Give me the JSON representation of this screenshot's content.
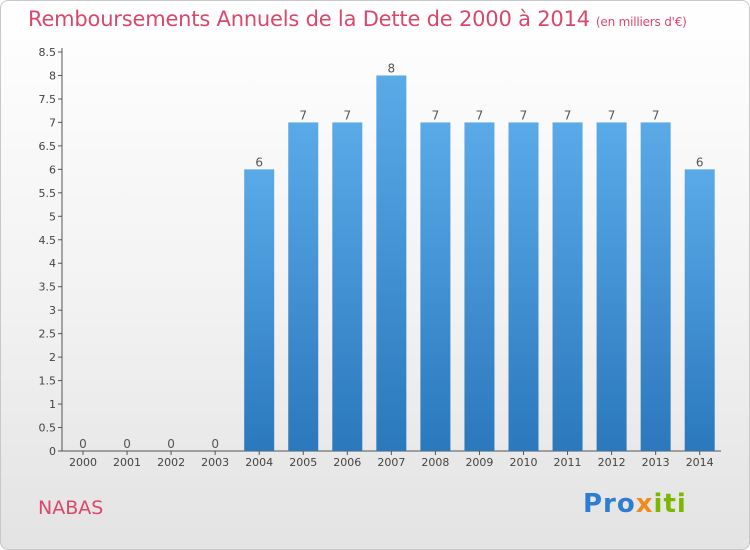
{
  "header": {
    "title": "Remboursements Annuels de la Dette de 2000 à 2014",
    "unit": "(en milliers d'€)"
  },
  "footer": {
    "commune": "NABAS",
    "logo_text": "Proxiti"
  },
  "colors": {
    "bar_top": "#5aaae8",
    "bar_bottom": "#2b78bd",
    "title": "#d9486b"
  },
  "chart_data": {
    "type": "bar",
    "categories": [
      "2000",
      "2001",
      "2002",
      "2003",
      "2004",
      "2005",
      "2006",
      "2007",
      "2008",
      "2009",
      "2010",
      "2011",
      "2012",
      "2013",
      "2014"
    ],
    "values": [
      0,
      0,
      0,
      0,
      6,
      7,
      7,
      8,
      7,
      7,
      7,
      7,
      7,
      7,
      6
    ],
    "data_labels": [
      "0",
      "0",
      "0",
      "0",
      "6",
      "7",
      "7",
      "8",
      "7",
      "7",
      "7",
      "7",
      "7",
      "7",
      "6"
    ],
    "y_ticks": [
      "0",
      "0.5",
      "1",
      "1.5",
      "2",
      "2.5",
      "3",
      "3.5",
      "4",
      "4.5",
      "5",
      "5.5",
      "6",
      "6.5",
      "7",
      "7.5",
      "8",
      "8.5"
    ],
    "ylim": [
      0,
      8.5
    ],
    "grid": false,
    "legend": "none"
  }
}
